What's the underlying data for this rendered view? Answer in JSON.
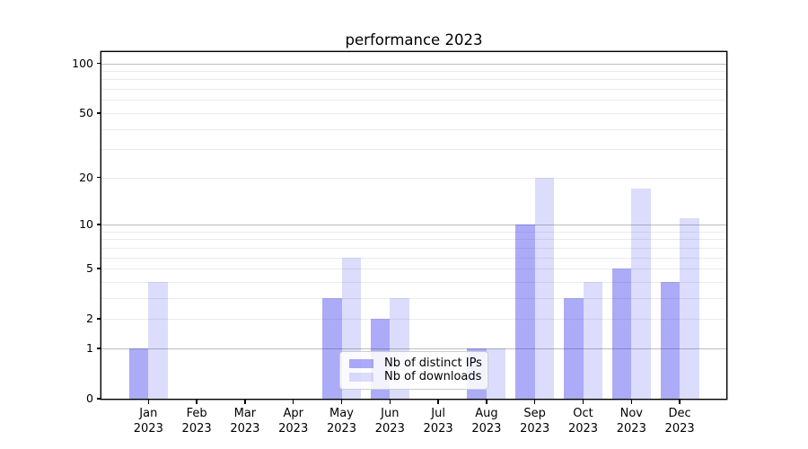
{
  "chart_data": {
    "type": "bar",
    "title": "performance 2023",
    "categories": [
      "Jan",
      "Feb",
      "Mar",
      "Apr",
      "May",
      "Jun",
      "Jul",
      "Aug",
      "Sep",
      "Oct",
      "Nov",
      "Dec"
    ],
    "category_year": "2023",
    "series": [
      {
        "name": "Nb of distinct IPs",
        "values": [
          1,
          0,
          0,
          0,
          3,
          2,
          0,
          1,
          10,
          3,
          5,
          4
        ],
        "fill": "rgba(50,50,235,0.41)",
        "color_hex": "#aaaaf0"
      },
      {
        "name": "Nb of downloads",
        "values": [
          4,
          0,
          0,
          0,
          6,
          3,
          0,
          1,
          20,
          4,
          17,
          11
        ],
        "fill": "rgba(50,50,235,0.17)",
        "color_hex": "#dcdcf8"
      }
    ],
    "yscale": "log1p",
    "ylim": [
      0,
      117
    ],
    "yticks_labeled": [
      0,
      1,
      2,
      5,
      10,
      20,
      50,
      100
    ],
    "yticks_minor": [
      2,
      3,
      4,
      5,
      6,
      7,
      8,
      9,
      20,
      30,
      40,
      50,
      60,
      70,
      80,
      90
    ],
    "yticks_emphasized": [
      1,
      10,
      100
    ],
    "grid": true,
    "legend_position": "lower-center",
    "colors": {
      "grid_minor": "#ebebeb",
      "grid_major": "#bdbdbd",
      "axis": "#000000",
      "legend_border": "#cccccc"
    }
  }
}
